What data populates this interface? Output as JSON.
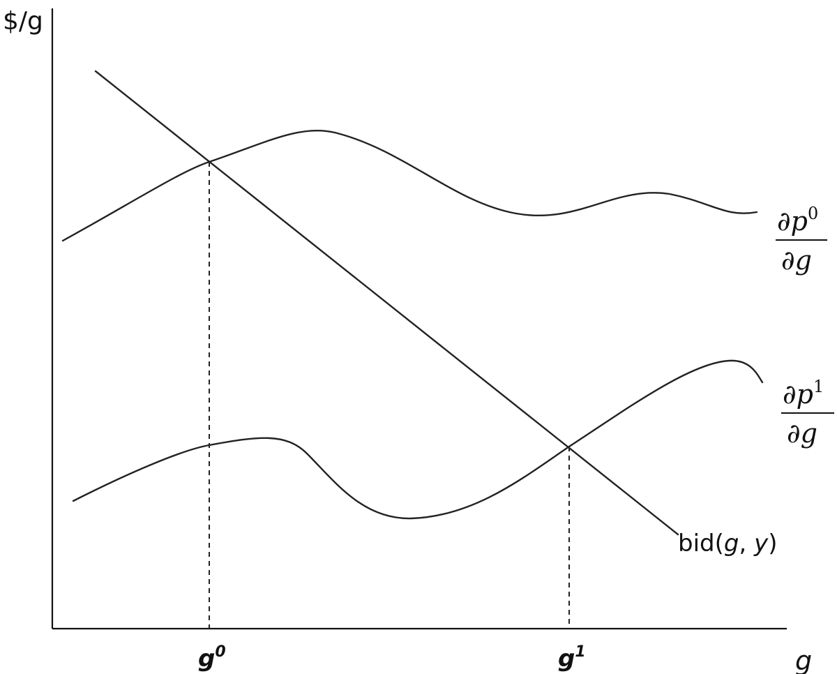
{
  "axes": {
    "y_label": "$/g",
    "x_label": "g"
  },
  "ticks": {
    "g0": {
      "base": "g",
      "sup": "0"
    },
    "g1": {
      "base": "g",
      "sup": "1"
    }
  },
  "curves": {
    "bid": {
      "label_prefix": "bid(",
      "label_g": "g",
      "label_sep": ", ",
      "label_y": "y",
      "label_suffix": ")"
    },
    "dp0": {
      "numerator": "∂p",
      "num_sup": "0",
      "denominator": "∂g"
    },
    "dp1": {
      "numerator": "∂p",
      "num_sup": "1",
      "denominator": "∂g"
    }
  }
}
